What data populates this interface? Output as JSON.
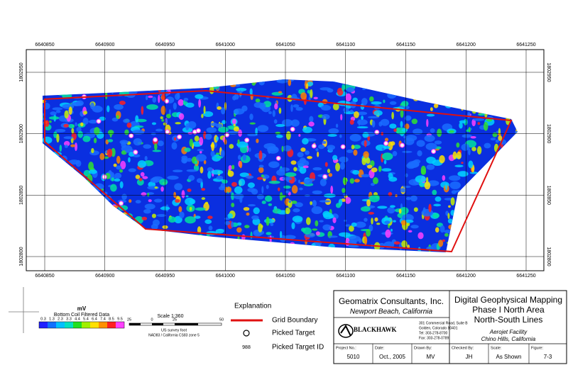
{
  "axes": {
    "x_ticks": [
      6640850,
      6640900,
      6640950,
      6641000,
      6641050,
      6641100,
      6641150,
      6641200,
      6641250
    ],
    "y_ticks": [
      1802950,
      1802900,
      1802850,
      1802800
    ]
  },
  "legend": {
    "unit": "mV",
    "title": "Bottom Coil Filtered Data",
    "color_labels": [
      "0.3",
      "1.3",
      "2.3",
      "3.3",
      "4.4",
      "5.4",
      "6.4",
      "7.4",
      "8.5",
      "9.5"
    ]
  },
  "scale": {
    "title": "Scale 1:360",
    "bar_labels": [
      "25",
      "0",
      "25",
      "50"
    ],
    "unit": "US survey foot",
    "datum": "NAD83 / California CS83 zone 5"
  },
  "explanation": {
    "title": "Explanation",
    "items": [
      "Grid Boundary",
      "Picked Target",
      "Picked Target ID"
    ],
    "target_id_example": "988"
  },
  "title_block": {
    "company": "Geomatrix Consultants, Inc.",
    "company_location": "Newport Beach, California",
    "logo": "BLACKHAWK",
    "address": [
      "301 Commercial Road, Suite B",
      "Golden, Colorado 80401",
      "Tel: 303-278-8700",
      "Fax: 303-278-0789"
    ],
    "title_lines": [
      "Digital Geophysical Mapping",
      "Phase I North Area",
      "North-South Lines"
    ],
    "site": "Aerojet Facility",
    "site_location": "Chino Hills, California",
    "fields": [
      {
        "label": "Project No.:",
        "value": "5010"
      },
      {
        "label": "Date:",
        "value": "Oct., 2005"
      },
      {
        "label": "Drawn By:",
        "value": "MV"
      },
      {
        "label": "Checked By:",
        "value": "JH"
      },
      {
        "label": "Scale:",
        "value": "As Shown"
      },
      {
        "label": "Figure:",
        "value": "7-3"
      }
    ]
  }
}
